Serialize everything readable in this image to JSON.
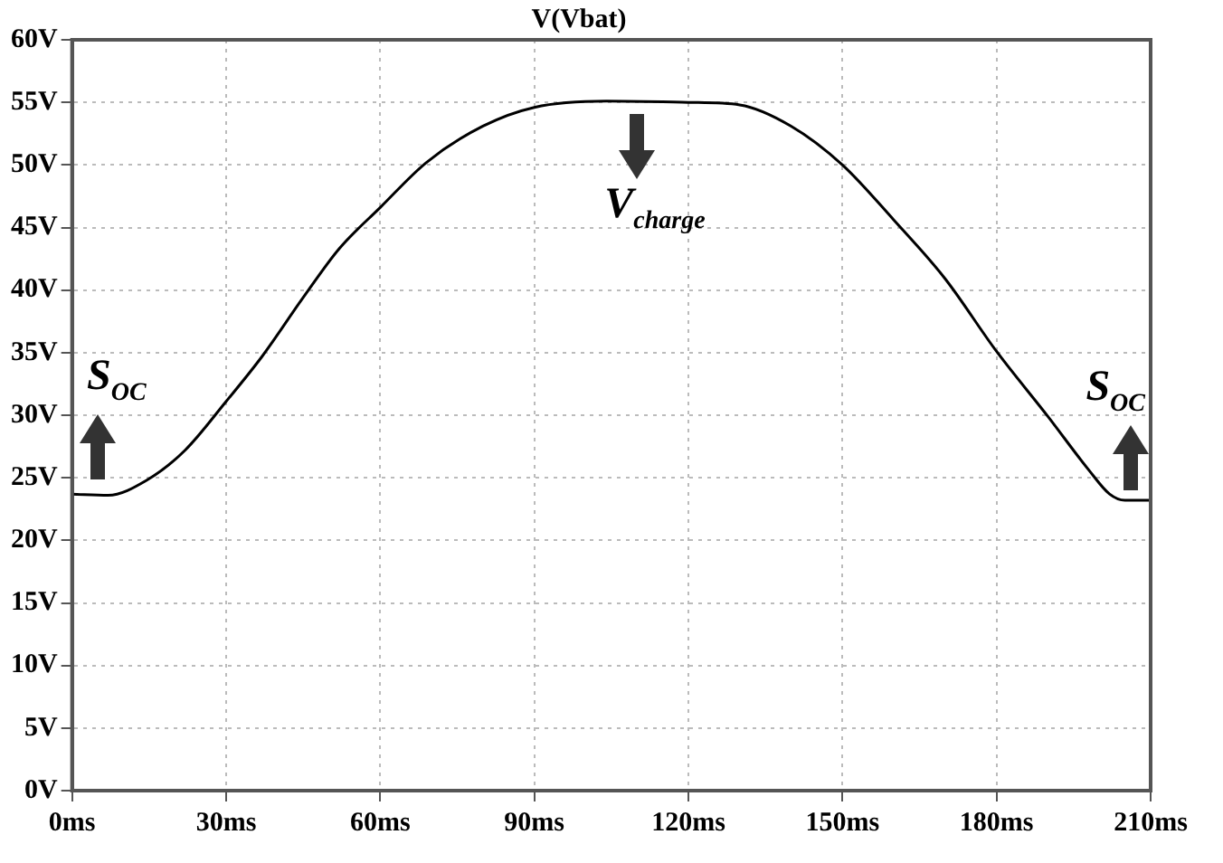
{
  "chart_data": {
    "type": "line",
    "title": "V(Vbat)",
    "x": [
      0,
      7,
      14.5,
      22,
      30,
      37,
      45,
      52,
      60,
      69,
      80,
      90,
      104,
      120,
      130,
      140,
      150,
      160,
      170,
      180,
      190,
      198,
      202,
      205,
      210
    ],
    "series": [
      {
        "color": "#000000",
        "values": [
          23.7,
          23.6,
          24.8,
          27.2,
          31.1,
          34.7,
          39.4,
          43.3,
          46.6,
          50.2,
          53.1,
          54.6,
          55.1,
          55,
          54.8,
          53.1,
          50,
          45.6,
          40.9,
          35.1,
          29.9,
          25.6,
          23.7,
          23.2,
          23.2
        ]
      }
    ],
    "xlim": [
      0,
      210
    ],
    "xticks": [
      {
        "value": 0,
        "label": "0ms"
      },
      {
        "value": 30,
        "label": "30ms"
      },
      {
        "value": 60,
        "label": "60ms"
      },
      {
        "value": 90,
        "label": "90ms"
      },
      {
        "value": 120,
        "label": "120ms"
      },
      {
        "value": 150,
        "label": "150ms"
      },
      {
        "value": 180,
        "label": "180ms"
      },
      {
        "value": 210,
        "label": "210ms"
      }
    ],
    "ylim": [
      0,
      60
    ],
    "yticks": [
      {
        "value": 0,
        "label": "0V"
      },
      {
        "value": 5,
        "label": "5V"
      },
      {
        "value": 10,
        "label": "10V"
      },
      {
        "value": 15,
        "label": "15V"
      },
      {
        "value": 20,
        "label": "20V"
      },
      {
        "value": 25,
        "label": "25V"
      },
      {
        "value": 30,
        "label": "30V"
      },
      {
        "value": 35,
        "label": "35V"
      },
      {
        "value": 40,
        "label": "40V"
      },
      {
        "value": 45,
        "label": "45V"
      },
      {
        "value": 50,
        "label": "50V"
      },
      {
        "value": 55,
        "label": "55V"
      },
      {
        "value": 60,
        "label": "60V"
      }
    ],
    "annotations": [
      {
        "text": "S$_{OC}$",
        "x": 5,
        "y": 24
      },
      {
        "text": "V$_{charge}$",
        "x": 110,
        "y": 55
      },
      {
        "text": "S$_{OC}$",
        "x": 206,
        "y": 23.2
      }
    ],
    "grid": true,
    "marker": "none",
    "line_style": "solid",
    "legend": false
  }
}
